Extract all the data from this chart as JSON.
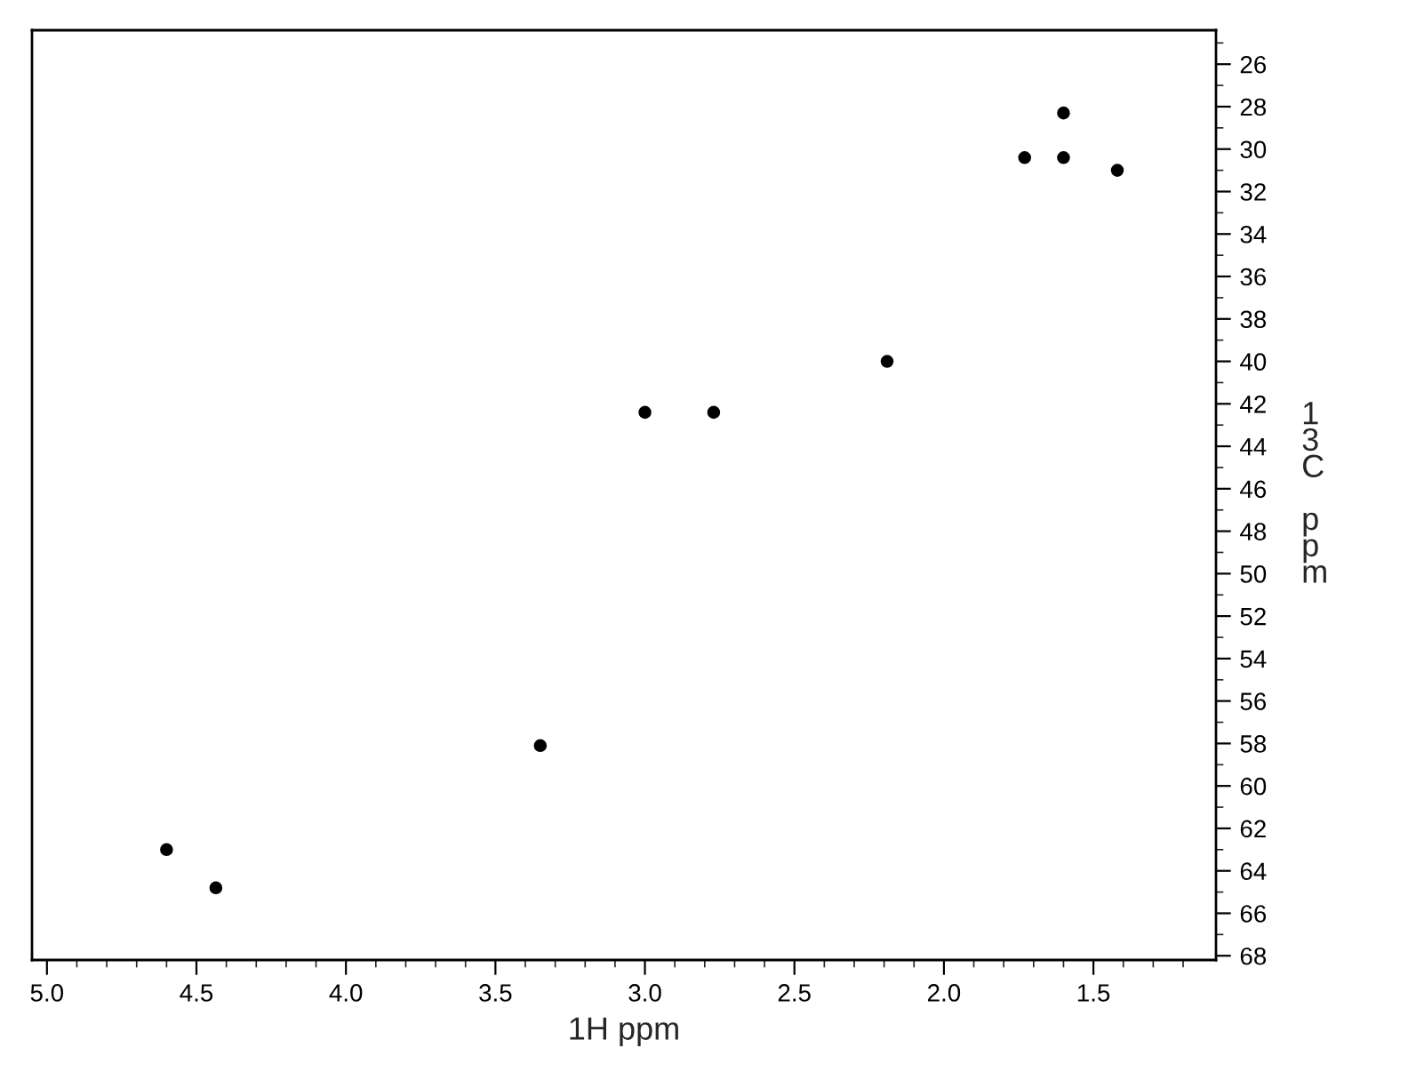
{
  "chart_data": {
    "type": "scatter",
    "xlabel": "1H ppm",
    "ylabel": "13C ppm",
    "marker": "circle",
    "grid": false,
    "legend": false,
    "x": [
      4.6,
      4.435,
      3.35,
      3.0,
      2.77,
      2.19,
      1.73,
      1.6,
      1.6,
      1.42
    ],
    "series": [
      {
        "color": "#000000",
        "values": [
          63.0,
          64.8,
          58.1,
          42.4,
          42.4,
          40.0,
          30.4,
          30.4,
          28.3,
          31.0
        ]
      }
    ],
    "xlim": [
      5.05,
      1.09
    ],
    "ylim": [
      68.2,
      24.4
    ],
    "xticks": [
      {
        "value": 5.0,
        "label": "5.0"
      },
      {
        "value": 4.9,
        "label": null
      },
      {
        "value": 4.8,
        "label": null
      },
      {
        "value": 4.7,
        "label": null
      },
      {
        "value": 4.6,
        "label": null
      },
      4.5,
      {
        "value": 4.4,
        "label": null
      },
      {
        "value": 4.3,
        "label": null
      },
      {
        "value": 4.2,
        "label": null
      },
      {
        "value": 4.1,
        "label": null
      },
      {
        "value": 4.0,
        "label": "4.0"
      },
      {
        "value": 3.9,
        "label": null
      },
      {
        "value": 3.8,
        "label": null
      },
      {
        "value": 3.7,
        "label": null
      },
      {
        "value": 3.6,
        "label": null
      },
      3.5,
      {
        "value": 3.4,
        "label": null
      },
      {
        "value": 3.3,
        "label": null
      },
      {
        "value": 3.2,
        "label": null
      },
      {
        "value": 3.1,
        "label": null
      },
      {
        "value": 3.0,
        "label": "3.0"
      },
      {
        "value": 2.9,
        "label": null
      },
      {
        "value": 2.8,
        "label": null
      },
      {
        "value": 2.7,
        "label": null
      },
      {
        "value": 2.6,
        "label": null
      },
      2.5,
      {
        "value": 2.4,
        "label": null
      },
      {
        "value": 2.3,
        "label": null
      },
      {
        "value": 2.2,
        "label": null
      },
      {
        "value": 2.1,
        "label": null
      },
      {
        "value": 2.0,
        "label": "2.0"
      },
      {
        "value": 1.9,
        "label": null
      },
      {
        "value": 1.8,
        "label": null
      },
      {
        "value": 1.7,
        "label": null
      },
      {
        "value": 1.6,
        "label": null
      },
      1.5,
      {
        "value": 1.4,
        "label": null
      },
      {
        "value": 1.3,
        "label": null
      },
      {
        "value": 1.2,
        "label": null
      }
    ],
    "yticks": [
      {
        "value": 25,
        "label": null
      },
      26,
      {
        "value": 27,
        "label": null
      },
      28,
      {
        "value": 29,
        "label": null
      },
      30,
      {
        "value": 31,
        "label": null
      },
      32,
      {
        "value": 33,
        "label": null
      },
      34,
      {
        "value": 35,
        "label": null
      },
      36,
      {
        "value": 37,
        "label": null
      },
      38,
      {
        "value": 39,
        "label": null
      },
      40,
      {
        "value": 41,
        "label": null
      },
      42,
      {
        "value": 43,
        "label": null
      },
      44,
      {
        "value": 45,
        "label": null
      },
      46,
      {
        "value": 47,
        "label": null
      },
      48,
      {
        "value": 49,
        "label": null
      },
      50,
      {
        "value": 51,
        "label": null
      },
      52,
      {
        "value": 53,
        "label": null
      },
      54,
      {
        "value": 55,
        "label": null
      },
      56,
      {
        "value": 57,
        "label": null
      },
      58,
      {
        "value": 59,
        "label": null
      },
      60,
      {
        "value": 61,
        "label": null
      },
      62,
      {
        "value": 63,
        "label": null
      },
      64,
      {
        "value": 65,
        "label": null
      },
      66,
      {
        "value": 67,
        "label": null
      },
      68
    ]
  }
}
